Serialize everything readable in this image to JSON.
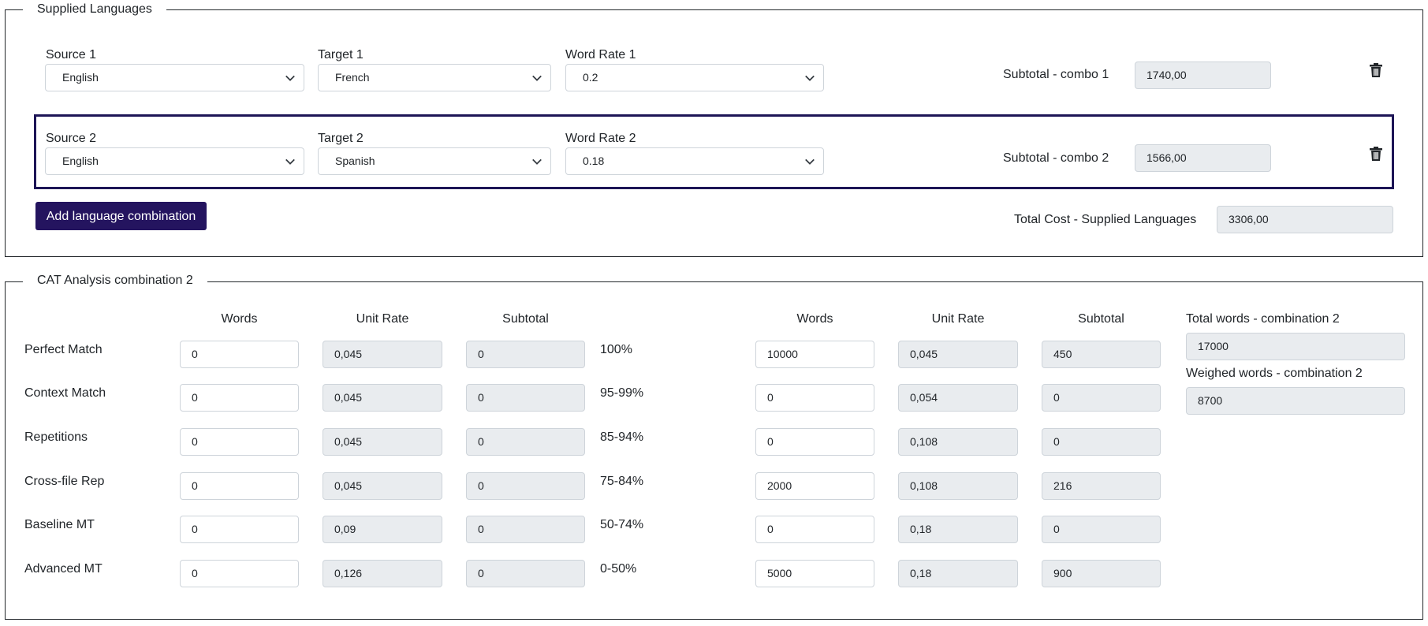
{
  "supplied": {
    "legend": "Supplied Languages",
    "combos": [
      {
        "source_label": "Source 1",
        "source_value": "English",
        "target_label": "Target 1",
        "target_value": "French",
        "rate_label": "Word Rate 1",
        "rate_value": "0.2",
        "subtotal_label": "Subtotal - combo 1",
        "subtotal_value": "1740,00"
      },
      {
        "source_label": "Source 2",
        "source_value": "English",
        "target_label": "Target 2",
        "target_value": "Spanish",
        "rate_label": "Word Rate 2",
        "rate_value": "0.18",
        "subtotal_label": "Subtotal - combo 2",
        "subtotal_value": "1566,00"
      }
    ],
    "add_button": "Add language combination",
    "total_label": "Total Cost - Supplied Languages",
    "total_value": "3306,00"
  },
  "cat": {
    "legend": "CAT Analysis combination 2",
    "headers": {
      "words": "Words",
      "unit_rate": "Unit Rate",
      "subtotal": "Subtotal"
    },
    "rows": [
      {
        "label": "Perfect Match",
        "words": "0",
        "rate": "0,045",
        "subtotal": "0",
        "pct": "100%",
        "words2": "10000",
        "rate2": "0,045",
        "subtotal2": "450"
      },
      {
        "label": "Context Match",
        "words": "0",
        "rate": "0,045",
        "subtotal": "0",
        "pct": "95-99%",
        "words2": "0",
        "rate2": "0,054",
        "subtotal2": "0"
      },
      {
        "label": "Repetitions",
        "words": "0",
        "rate": "0,045",
        "subtotal": "0",
        "pct": "85-94%",
        "words2": "0",
        "rate2": "0,108",
        "subtotal2": "0"
      },
      {
        "label": "Cross-file Rep",
        "words": "0",
        "rate": "0,045",
        "subtotal": "0",
        "pct": "75-84%",
        "words2": "2000",
        "rate2": "0,108",
        "subtotal2": "216"
      },
      {
        "label": "Baseline MT",
        "words": "0",
        "rate": "0,09",
        "subtotal": "0",
        "pct": "50-74%",
        "words2": "0",
        "rate2": "0,18",
        "subtotal2": "0"
      },
      {
        "label": "Advanced MT",
        "words": "0",
        "rate": "0,126",
        "subtotal": "0",
        "pct": "0-50%",
        "words2": "5000",
        "rate2": "0,18",
        "subtotal2": "900"
      }
    ],
    "total_words_label": "Total words - combination 2",
    "total_words_value": "17000",
    "weighed_words_label": "Weighed words - combination 2",
    "weighed_words_value": "8700"
  },
  "icons": {
    "delete": "trash-icon",
    "dropdown": "chevron-down-icon"
  }
}
